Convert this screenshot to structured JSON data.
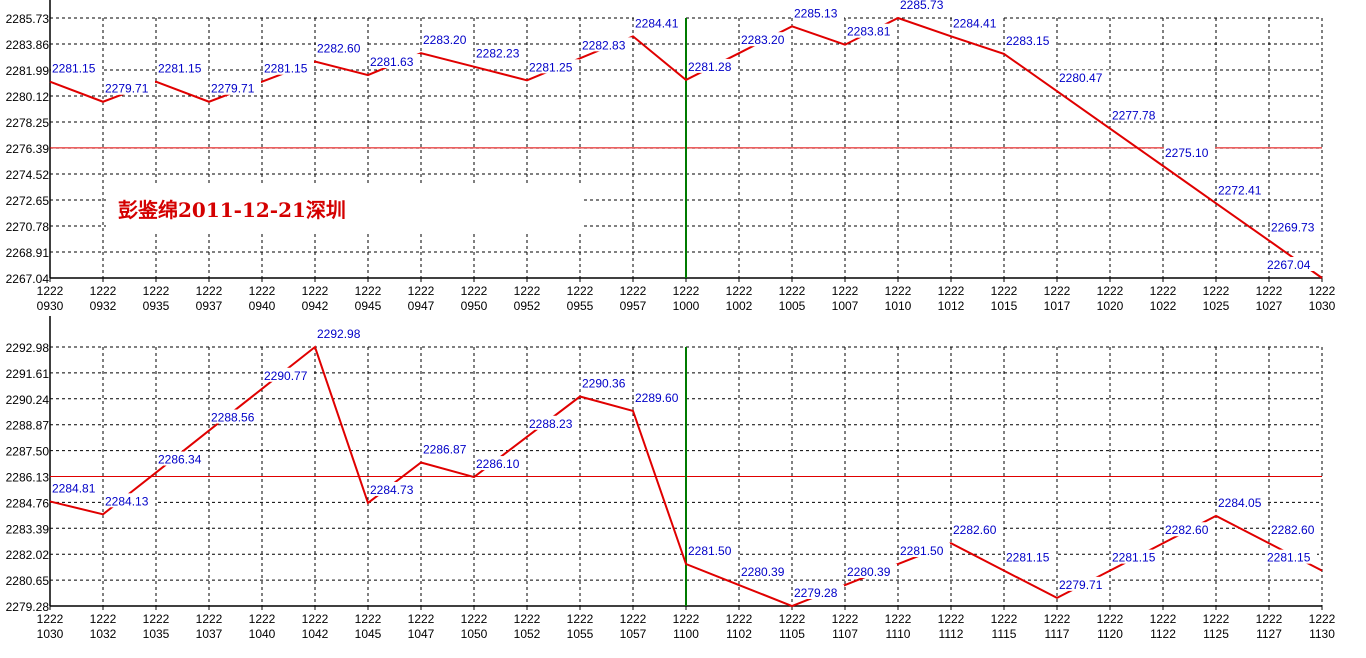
{
  "watermark": "彭鉴绵2011-12-21深圳",
  "colors": {
    "line": "#e00000",
    "ref_line": "#e00000",
    "vline": "#007a00",
    "label": "#0000c8",
    "grid": "#000000"
  },
  "chart_data": [
    {
      "type": "line",
      "yticks": [
        "2285.73",
        "2283.86",
        "2281.99",
        "2280.12",
        "2278.25",
        "2276.39",
        "2274.52",
        "2272.65",
        "2270.78",
        "2268.91",
        "2267.04"
      ],
      "ylim": [
        2267.04,
        2285.73
      ],
      "x_date": "1222",
      "x": [
        "0930",
        "0932",
        "0935",
        "0937",
        "0940",
        "0942",
        "0945",
        "0947",
        "0950",
        "0952",
        "0955",
        "0957",
        "1000",
        "1002",
        "1005",
        "1007",
        "1010",
        "1012",
        "1015",
        "1017",
        "1020",
        "1022",
        "1025",
        "1027",
        "1030"
      ],
      "values": [
        2281.15,
        2279.71,
        2281.15,
        2279.71,
        2281.15,
        2282.6,
        2281.63,
        2283.2,
        2282.23,
        2281.25,
        2282.83,
        2284.41,
        2281.28,
        2283.2,
        2285.13,
        2283.81,
        2285.73,
        2284.41,
        2283.15,
        2280.47,
        2277.78,
        2275.1,
        2272.41,
        2269.73,
        2267.04
      ],
      "labels": [
        "2281.15",
        "2279.71",
        "2281.15",
        "2279.71",
        "2281.15",
        "2282.60",
        "2281.63",
        "2283.20",
        "2282.23",
        "2281.25",
        "2282.83",
        "2284.41",
        "2281.28",
        "2283.20",
        "2285.13",
        "2283.81",
        "2285.73",
        "2284.41",
        "2283.15",
        "2280.47",
        "2277.78",
        "2275.10",
        "2272.41",
        "2269.73",
        "2267.04"
      ],
      "reference_line": 2276.39,
      "vertical_marker_index": 12,
      "grid": true
    },
    {
      "type": "line",
      "yticks": [
        "2292.98",
        "2291.61",
        "2290.24",
        "2288.87",
        "2287.50",
        "2286.13",
        "2284.76",
        "2283.39",
        "2282.02",
        "2280.65",
        "2279.28"
      ],
      "ylim": [
        2279.28,
        2292.98
      ],
      "x_date": "1222",
      "x": [
        "1030",
        "1032",
        "1035",
        "1037",
        "1040",
        "1042",
        "1045",
        "1047",
        "1050",
        "1052",
        "1055",
        "1057",
        "1100",
        "1102",
        "1105",
        "1107",
        "1110",
        "1112",
        "1115",
        "1117",
        "1120",
        "1122",
        "1125",
        "1127",
        "1130"
      ],
      "values": [
        2284.81,
        2284.13,
        2286.34,
        2288.56,
        2290.77,
        2292.98,
        2284.73,
        2286.87,
        2286.1,
        2288.23,
        2290.36,
        2289.6,
        2281.5,
        2280.39,
        2279.28,
        2280.39,
        2281.5,
        2282.6,
        2281.15,
        2279.71,
        2281.15,
        2282.6,
        2284.05,
        2282.6,
        2281.15
      ],
      "labels": [
        "2284.81",
        "2284.13",
        "2286.34",
        "2288.56",
        "2290.77",
        "2292.98",
        "2284.73",
        "2286.87",
        "2286.10",
        "2288.23",
        "2290.36",
        "2289.60",
        "2281.50",
        "2280.39",
        "2279.28",
        "2280.39",
        "2281.50",
        "2282.60",
        "2281.15",
        "2279.71",
        "2281.15",
        "2282.60",
        "2284.05",
        "2282.60",
        "2281.15"
      ],
      "reference_line": 2286.13,
      "vertical_marker_index": 12,
      "grid": true
    }
  ]
}
